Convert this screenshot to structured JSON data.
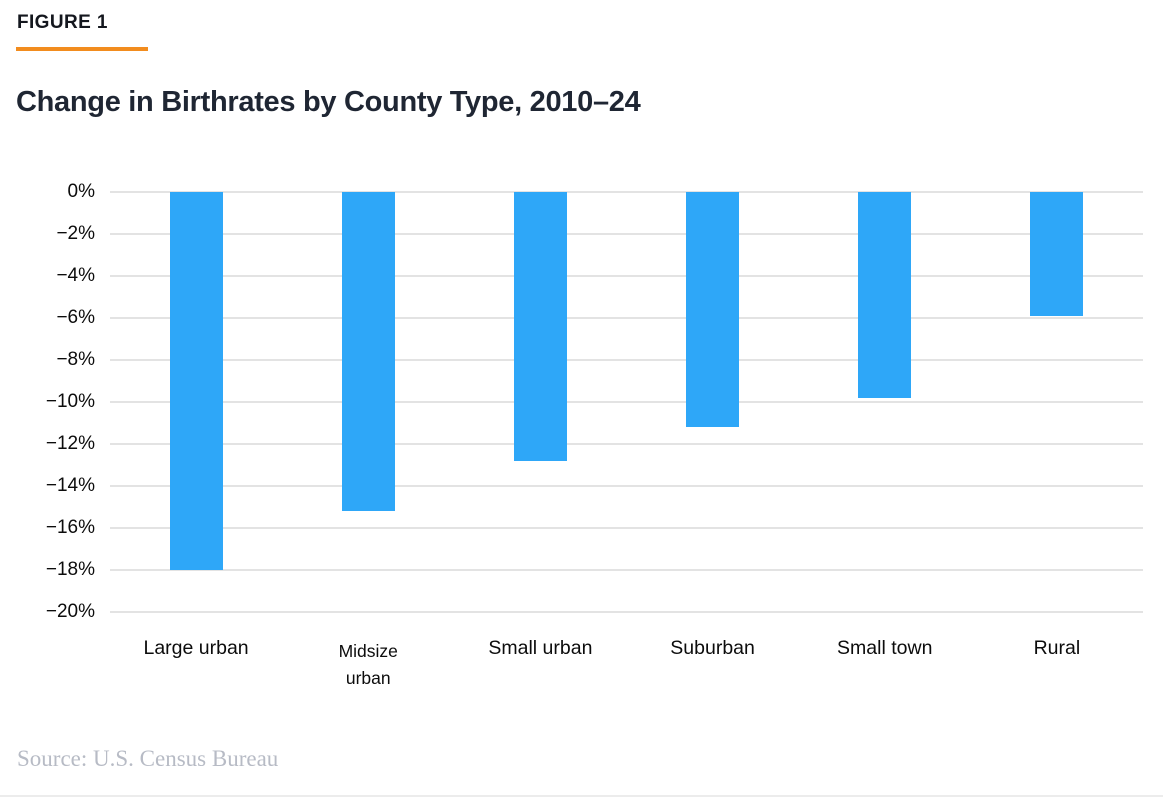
{
  "figure_label": "FIGURE 1",
  "title": "Change in Birthrates by County Type, 2010–24",
  "source": "Source: U.S. Census Bureau",
  "colors": {
    "accent_rule": "#f28c1e",
    "bar": "#2ea7f8",
    "gridline": "#e3e3e3",
    "title_text": "#1f2633",
    "source_text": "#b7bbc5"
  },
  "chart_data": {
    "type": "bar",
    "title": "Change in Birthrates by County Type, 2010–24",
    "categories": [
      "Large urban",
      "Midsize urban",
      "Small urban",
      "Suburban",
      "Small town",
      "Rural"
    ],
    "values": [
      -18.0,
      -15.2,
      -12.8,
      -11.2,
      -9.8,
      -5.9
    ],
    "xlabel": "",
    "ylabel": "",
    "ylim": [
      -20,
      0
    ],
    "ytick_step": 2,
    "ytick_labels": [
      "0%",
      "−2%",
      "−4%",
      "−6%",
      "−8%",
      "−10%",
      "−12%",
      "−14%",
      "−16%",
      "−18%",
      "−20%"
    ],
    "grid": true,
    "legend": false,
    "bar_color": "#2ea7f8",
    "x_display_labels": [
      {
        "lines": [
          "Large urban"
        ],
        "small": false
      },
      {
        "lines": [
          "Midsize",
          "urban"
        ],
        "small": true
      },
      {
        "lines": [
          "Small urban"
        ],
        "small": false
      },
      {
        "lines": [
          "Suburban"
        ],
        "small": false
      },
      {
        "lines": [
          "Small town"
        ],
        "small": false
      },
      {
        "lines": [
          "Rural"
        ],
        "small": false
      }
    ]
  }
}
